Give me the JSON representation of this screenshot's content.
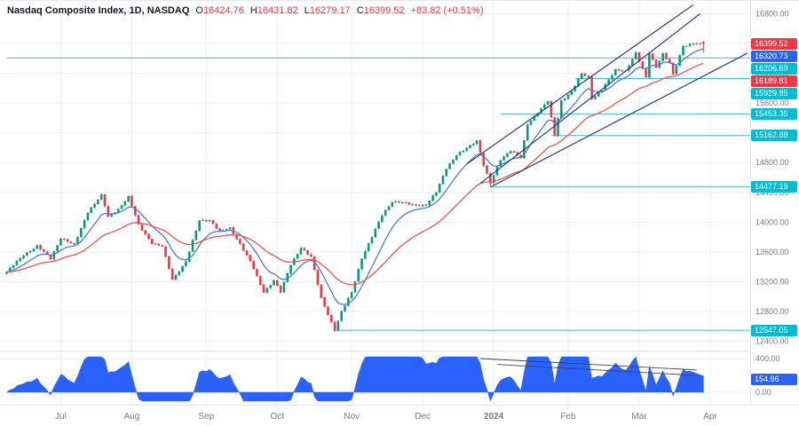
{
  "header": {
    "title": "Nasdaq Composite Index, 1D, NASDAQ",
    "open_label": "O",
    "open": "16424.76",
    "high_label": "H",
    "high": "16431.82",
    "low_label": "L",
    "low": "16279.17",
    "close_label": "C",
    "close": "16399.52",
    "change": "+83.82 (+0.51%)"
  },
  "colors": {
    "up": "#089981",
    "down": "#f23645",
    "ma_fast": "#4c7bd2",
    "ma_slow": "#ef5350",
    "level": "#45b8c9",
    "trend": "#2a3b7a",
    "indicator_fill": "#2962ff",
    "badge_red": "#f23645",
    "badge_blue": "#2962ff",
    "badge_teal": "#00bcd4",
    "grid": "#eceff4",
    "axis_text": "#787b86",
    "text": "#131722"
  },
  "price_axis": {
    "ticks": [
      {
        "label": "16800.00",
        "price": 16800
      },
      {
        "label": "16400.00",
        "price": 16400
      },
      {
        "label": "16000.00",
        "price": 16000
      },
      {
        "label": "15600.00",
        "price": 15600
      },
      {
        "label": "15200.00",
        "price": 15200
      },
      {
        "label": "14800.00",
        "price": 14800
      },
      {
        "label": "14400.00",
        "price": 14400
      },
      {
        "label": "14000.00",
        "price": 14000
      },
      {
        "label": "13600.00",
        "price": 13600
      },
      {
        "label": "13200.00",
        "price": 13200
      },
      {
        "label": "12800.00",
        "price": 12800
      },
      {
        "label": "12400.00",
        "price": 12400
      }
    ]
  },
  "time_axis": {
    "ticks": [
      {
        "label": "Jul",
        "day": 16
      },
      {
        "label": "Aug",
        "day": 37
      },
      {
        "label": "Sep",
        "day": 59
      },
      {
        "label": "Oct",
        "day": 80
      },
      {
        "label": "Nov",
        "day": 102
      },
      {
        "label": "Dec",
        "day": 123
      },
      {
        "label": "2024",
        "day": 144,
        "bold": true
      },
      {
        "label": "Feb",
        "day": 166
      },
      {
        "label": "Mar",
        "day": 187
      },
      {
        "label": "Apr",
        "day": 208
      }
    ]
  },
  "badges": [
    {
      "label": "16399.52",
      "price": 16399.52,
      "panel": "main",
      "color_key": "badge_red"
    },
    {
      "label": "16320.73",
      "price": 16320.73,
      "panel": "main",
      "color_key": "badge_blue"
    },
    {
      "label": "16206.69",
      "price": 16206.69,
      "panel": "main",
      "color_key": "badge_teal"
    },
    {
      "label": "16189.81",
      "price": 16189.81,
      "panel": "main",
      "color_key": "badge_red"
    },
    {
      "label": "15929.85",
      "price": 15929.85,
      "panel": "main",
      "color_key": "badge_teal"
    },
    {
      "label": "15453.35",
      "price": 15453.35,
      "panel": "main",
      "color_key": "badge_teal"
    },
    {
      "label": "15162.88",
      "price": 15162.88,
      "panel": "main",
      "color_key": "badge_teal"
    },
    {
      "label": "14477.19",
      "price": 14477.19,
      "panel": "main",
      "color_key": "badge_teal"
    },
    {
      "label": "12547.05",
      "price": 12547.05,
      "panel": "main",
      "color_key": "badge_teal"
    },
    {
      "label": "154.96",
      "value": 154.96,
      "panel": "indicator",
      "color_key": "badge_blue"
    }
  ],
  "chart_data": {
    "type": "candlestick",
    "title": "Nasdaq Composite Index",
    "interval": "1D",
    "exchange": "NASDAQ",
    "ylim": [
      12400,
      16800
    ],
    "days": 207,
    "last_candle": {
      "open": 16424.76,
      "high": 16431.82,
      "low": 16279.17,
      "close": 16399.52,
      "change": "+83.82",
      "change_pct": "+0.51%"
    },
    "close_path": [
      [
        0,
        13330
      ],
      [
        5,
        13560
      ],
      [
        9,
        13680
      ],
      [
        13,
        13510
      ],
      [
        16,
        13790
      ],
      [
        20,
        13690
      ],
      [
        24,
        14140
      ],
      [
        28,
        14360
      ],
      [
        30,
        14070
      ],
      [
        33,
        14180
      ],
      [
        36,
        14340
      ],
      [
        39,
        13960
      ],
      [
        43,
        13720
      ],
      [
        46,
        13670
      ],
      [
        49,
        13230
      ],
      [
        53,
        13470
      ],
      [
        57,
        14020
      ],
      [
        60,
        14030
      ],
      [
        63,
        13870
      ],
      [
        66,
        13920
      ],
      [
        69,
        13710
      ],
      [
        72,
        13470
      ],
      [
        76,
        13060
      ],
      [
        79,
        13220
      ],
      [
        81,
        13060
      ],
      [
        84,
        13430
      ],
      [
        87,
        13660
      ],
      [
        90,
        13530
      ],
      [
        93,
        12980
      ],
      [
        97,
        12550
      ],
      [
        99,
        12790
      ],
      [
        102,
        13060
      ],
      [
        105,
        13520
      ],
      [
        108,
        13800
      ],
      [
        111,
        14100
      ],
      [
        114,
        14280
      ],
      [
        118,
        14250
      ],
      [
        121,
        14230
      ],
      [
        124,
        14230
      ],
      [
        127,
        14400
      ],
      [
        130,
        14730
      ],
      [
        133,
        14900
      ],
      [
        136,
        14990
      ],
      [
        139,
        15100
      ],
      [
        141,
        14770
      ],
      [
        143,
        14520
      ],
      [
        146,
        14840
      ],
      [
        149,
        14970
      ],
      [
        152,
        14860
      ],
      [
        154,
        15310
      ],
      [
        157,
        15480
      ],
      [
        160,
        15630
      ],
      [
        162,
        15160
      ],
      [
        164,
        15630
      ],
      [
        167,
        15760
      ],
      [
        170,
        15990
      ],
      [
        172,
        15940
      ],
      [
        173,
        15660
      ],
      [
        176,
        15780
      ],
      [
        180,
        16040
      ],
      [
        183,
        16035
      ],
      [
        186,
        16275
      ],
      [
        189,
        15940
      ],
      [
        190,
        16270
      ],
      [
        192,
        16085
      ],
      [
        194,
        16265
      ],
      [
        196,
        16130
      ],
      [
        197,
        15975
      ],
      [
        200,
        16370
      ],
      [
        203,
        16400
      ],
      [
        206,
        16399.52
      ]
    ],
    "moving_averages": [
      {
        "name": "ema-fast",
        "period": 10,
        "color_key": "ma_fast",
        "last_value": 16320.73
      },
      {
        "name": "ema-slow",
        "period": 30,
        "color_key": "ma_slow",
        "last_value": 16189.81
      }
    ],
    "levels": [
      {
        "price": 16206.69,
        "from_day": 0
      },
      {
        "price": 15929.85,
        "from_day": 168
      },
      {
        "price": 15453.35,
        "from_day": 146
      },
      {
        "price": 15162.88,
        "from_day": 161
      },
      {
        "price": 14477.19,
        "from_day": 143,
        "anchor_low": true
      },
      {
        "price": 12547.05,
        "from_day": 97,
        "anchor_low": true
      }
    ],
    "trendlines": [
      {
        "d1": 136,
        "p1": 14780,
        "d2": 203,
        "p2": 16920
      },
      {
        "d1": 140,
        "p1": 14520,
        "d2": 205,
        "p2": 16800
      },
      {
        "d1": 143,
        "p1": 14470,
        "d2": 219,
        "p2": 16270
      }
    ],
    "indicator": {
      "last_value": 154.96,
      "ticks": [
        {
          "label": "400.00",
          "value": 400
        },
        {
          "label": "0.00",
          "value": 0
        }
      ],
      "trendlines": [
        {
          "d1": 140,
          "v1": 400,
          "d2": 204,
          "v2": 265
        },
        {
          "d1": 145,
          "v1": 330,
          "d2": 204,
          "v2": 200
        }
      ]
    }
  }
}
